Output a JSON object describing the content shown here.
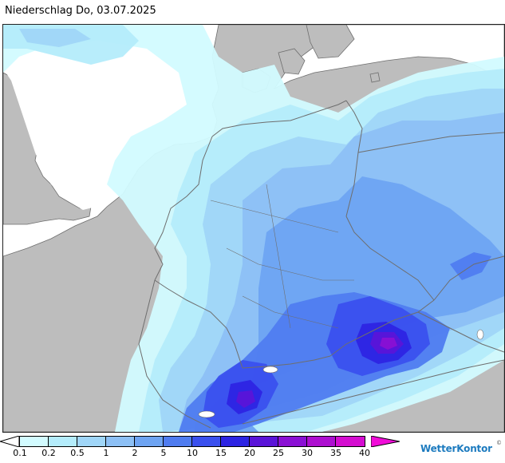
{
  "title": "Niederschlag Do, 03.07.2025",
  "brand": "WetterKontor",
  "brand_mark": "©",
  "colors": {
    "land": "#bdbdbd",
    "sea": "#ffffff",
    "border": "#6e6e6e",
    "c01": "#d2fbff",
    "c02": "#b4ecfb",
    "c05": "#a0d6f8",
    "c1": "#8dc0f5",
    "c2": "#6ea4f2",
    "c5": "#4f7cf0",
    "c10": "#3a50ee",
    "c15": "#2d24e3",
    "c20": "#5a14d8",
    "c25": "#8a10d4",
    "c30": "#ad0fd0",
    "c35": "#d40dd0",
    "c40": "#f00cd8"
  },
  "legend": {
    "ticks": [
      "0.1",
      "0.2",
      "0.5",
      "1",
      "2",
      "5",
      "10",
      "15",
      "20",
      "25",
      "30",
      "35",
      "40"
    ]
  }
}
